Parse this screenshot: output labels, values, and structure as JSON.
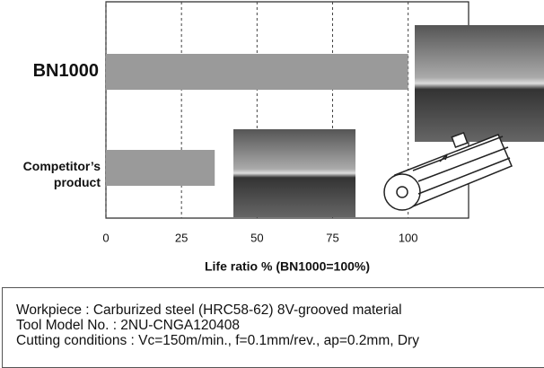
{
  "chart_data": {
    "type": "bar",
    "orientation": "horizontal",
    "categories": [
      "BN1000",
      "Competitor’s product"
    ],
    "values": [
      100,
      36
    ],
    "color": "#9a9a9a",
    "xlim": [
      0,
      120
    ],
    "xticks": [
      0,
      25,
      50,
      75,
      100
    ],
    "grid": true,
    "x_label": "Life ratio % (BN1000=100%)"
  },
  "notes": [
    "Workpiece : Carburized steel (HRC58-62) 8V-grooved material",
    "Tool Model No. : 2NU-CNGA120408",
    "Cutting conditions : Vc=150m/min., f=0.1mm/rev., ap=0.2mm, Dry"
  ]
}
